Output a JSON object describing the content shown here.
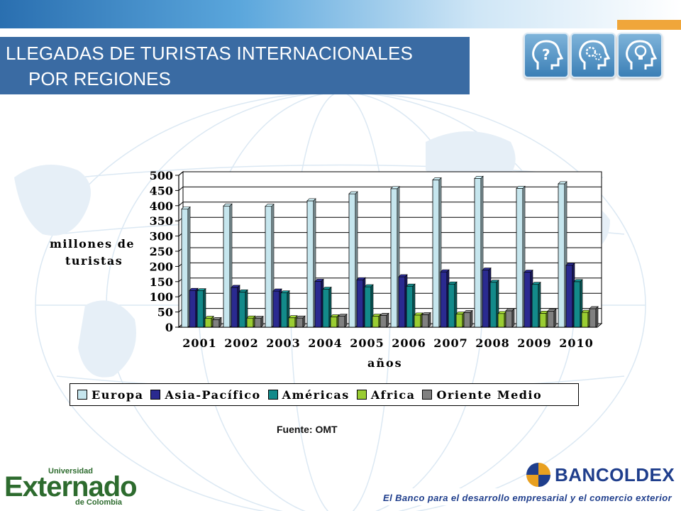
{
  "header": {
    "title_line1": "LLEGADAS DE TURISTAS INTERNACIONALES",
    "title_line2": "POR REGIONES"
  },
  "icons": [
    "head-question-icon",
    "head-gears-icon",
    "head-lightbulb-icon"
  ],
  "chart_data": {
    "type": "bar",
    "categories": [
      "2001",
      "2002",
      "2003",
      "2004",
      "2005",
      "2006",
      "2007",
      "2008",
      "2009",
      "2010"
    ],
    "series": [
      {
        "name": "Europa",
        "color": "#c6e6ee",
        "values": [
          389,
          399,
          398,
          416,
          439,
          456,
          485,
          490,
          457,
          472
        ]
      },
      {
        "name": "Asia-Pacífico",
        "color": "#2a2a90",
        "values": [
          121,
          131,
          119,
          151,
          156,
          166,
          182,
          188,
          181,
          204
        ]
      },
      {
        "name": "Américas",
        "color": "#138a8a",
        "values": [
          120,
          116,
          113,
          125,
          133,
          135,
          142,
          148,
          141,
          150
        ]
      },
      {
        "name": "Africa",
        "color": "#9acd32",
        "values": [
          29,
          30,
          31,
          34,
          36,
          40,
          43,
          45,
          46,
          49
        ]
      },
      {
        "name": "Oriente Medio",
        "color": "#808080",
        "values": [
          25,
          29,
          30,
          36,
          39,
          41,
          48,
          54,
          53,
          61
        ]
      }
    ],
    "xlabel": "años",
    "ylabel_line1": "millones de",
    "ylabel_line2": "turistas",
    "ylim": [
      0,
      500
    ],
    "yticks": [
      "0",
      "50",
      "100",
      "150",
      "200",
      "250",
      "300",
      "350",
      "400",
      "450",
      "500"
    ],
    "grid": true,
    "legend_position": "bottom"
  },
  "source": "Fuente: OMT",
  "logos": {
    "left_small": "Universidad",
    "left_main": "Externado",
    "left_sub": "de Colombia",
    "right_main": "BANCOLDEX",
    "right_slogan": "El Banco para el desarrollo empresarial y el comercio exterior"
  }
}
